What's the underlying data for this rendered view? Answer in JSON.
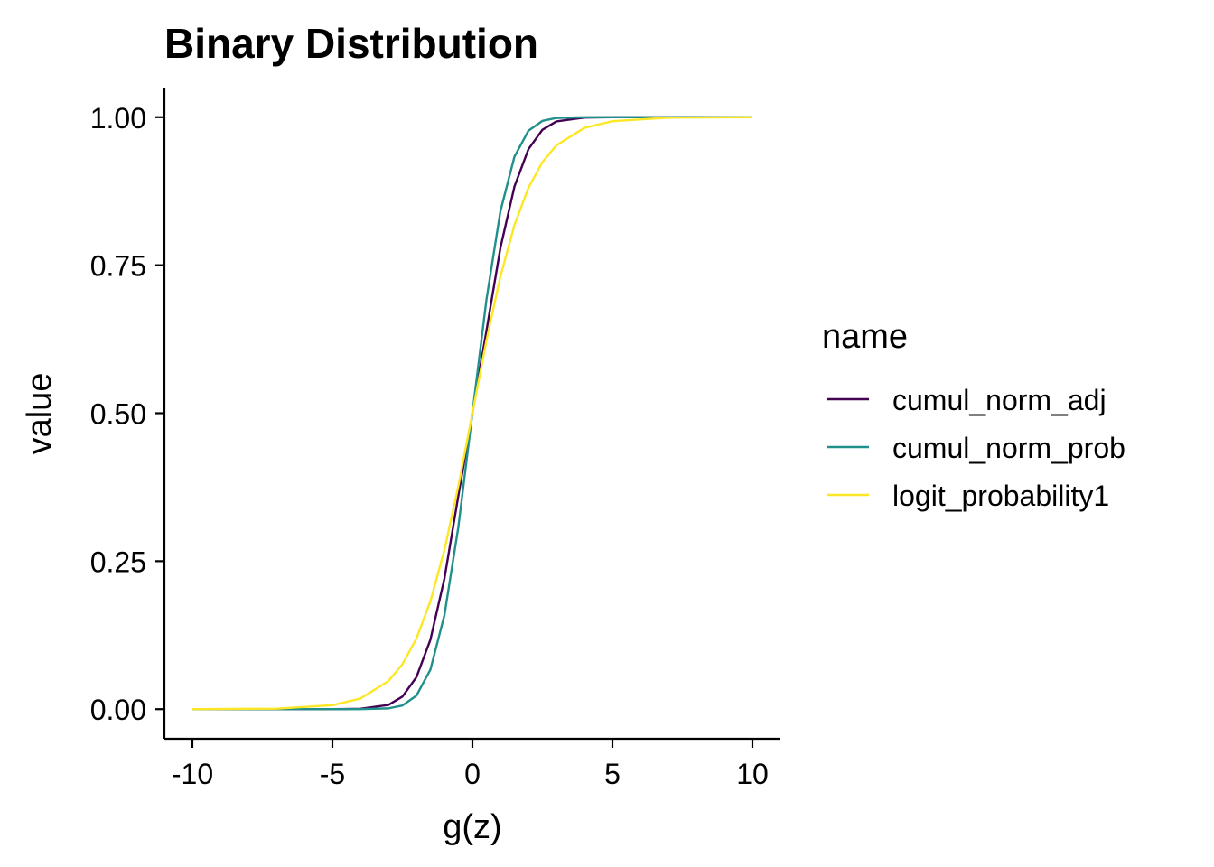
{
  "chart_data": {
    "type": "line",
    "title": "Binary Distribution",
    "xlabel": "g(z)",
    "ylabel": "value",
    "xlim": [
      -11,
      11
    ],
    "ylim": [
      -0.05,
      1.05
    ],
    "xticks": [
      -10,
      -5,
      0,
      5,
      10
    ],
    "xtick_labels": [
      "-10",
      "-5",
      "0",
      "5",
      "10"
    ],
    "yticks": [
      0,
      0.25,
      0.5,
      0.75,
      1
    ],
    "ytick_labels": [
      "0.00",
      "0.25",
      "0.50",
      "0.75",
      "1.00"
    ],
    "grid": false,
    "legend": {
      "title": "name",
      "placement": "right"
    },
    "series": [
      {
        "name": "cumul_norm_adj",
        "color": "#440154",
        "x": [
          -10,
          -5,
          -4,
          -3,
          -2.5,
          -2,
          -1.5,
          -1,
          -0.5,
          0,
          0.5,
          1,
          1.5,
          2,
          2.5,
          3,
          4,
          5,
          10
        ],
        "y": [
          0.0,
          0.0,
          0.0006,
          0.0071,
          0.0212,
          0.054,
          0.1174,
          0.2206,
          0.3611,
          0.5,
          0.6389,
          0.7794,
          0.8826,
          0.946,
          0.9788,
          0.9929,
          0.9994,
          1.0,
          1.0
        ]
      },
      {
        "name": "cumul_norm_prob",
        "color": "#21908C",
        "x": [
          -10,
          -5,
          -4,
          -3,
          -2.5,
          -2,
          -1.5,
          -1,
          -0.5,
          0,
          0.5,
          1,
          1.5,
          2,
          2.5,
          3,
          4,
          5,
          10
        ],
        "y": [
          0.0,
          0.0,
          0.0,
          0.0013,
          0.0062,
          0.0228,
          0.0668,
          0.1587,
          0.3085,
          0.5,
          0.6915,
          0.8413,
          0.9332,
          0.9772,
          0.9938,
          0.9987,
          1.0,
          1.0,
          1.0
        ]
      },
      {
        "name": "logit_probability1",
        "color": "#FDE725",
        "x": [
          -10,
          -7,
          -5,
          -4,
          -3,
          -2.5,
          -2,
          -1.5,
          -1,
          -0.5,
          0,
          0.5,
          1,
          1.5,
          2,
          2.5,
          3,
          4,
          5,
          7,
          10
        ],
        "y": [
          0.0,
          0.0009,
          0.0067,
          0.018,
          0.0474,
          0.0759,
          0.1192,
          0.1824,
          0.2689,
          0.3775,
          0.5,
          0.6225,
          0.7311,
          0.8176,
          0.8808,
          0.9241,
          0.9526,
          0.982,
          0.9933,
          0.9991,
          1.0
        ]
      }
    ]
  }
}
